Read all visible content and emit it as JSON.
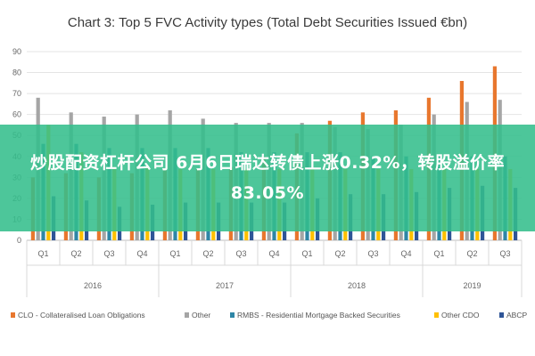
{
  "overlay": {
    "text": "炒股配资杠杆公司 6月6日瑞达转债上涨0.32%，转股溢价率83.05%"
  },
  "chart_data": {
    "type": "bar",
    "title": "Chart 3: Top 5 FVC Activity types (Total Debt Securities Issued €bn)",
    "xlabel": "",
    "ylabel": "",
    "ylim": [
      0,
      90
    ],
    "yticks": [
      0,
      10,
      20,
      30,
      40,
      50,
      60,
      70,
      80,
      90
    ],
    "grid": true,
    "legend_position": "bottom",
    "categories": [
      "Q1",
      "Q2",
      "Q3",
      "Q4",
      "Q1",
      "Q2",
      "Q3",
      "Q4",
      "Q1",
      "Q2",
      "Q3",
      "Q4",
      "Q1",
      "Q2",
      "Q3"
    ],
    "years": [
      {
        "label": "2016",
        "quarters": 4
      },
      {
        "label": "2017",
        "quarters": 4
      },
      {
        "label": "2018",
        "quarters": 4
      },
      {
        "label": "2019",
        "quarters": 3
      }
    ],
    "series": [
      {
        "name": "CLO - Collateralised Loan Obligations",
        "color": "#e8772e",
        "values": [
          30,
          32,
          30,
          32,
          34,
          34,
          35,
          40,
          51,
          57,
          61,
          62,
          68,
          76,
          83
        ]
      },
      {
        "name": "Other",
        "color": "#a5a5a5",
        "values": [
          68,
          61,
          59,
          60,
          62,
          58,
          56,
          56,
          56,
          54,
          53,
          55,
          60,
          66,
          67
        ]
      },
      {
        "name": "RMBS - Residential Mortgage Backed Securities",
        "color": "#2e86a6",
        "values": [
          46,
          46,
          44,
          44,
          44,
          44,
          42,
          42,
          42,
          42,
          40,
          40,
          40,
          40,
          40
        ]
      },
      {
        "name": "Other CDO",
        "color": "#ffc000",
        "values": [
          55,
          42,
          35,
          35,
          34,
          34,
          34,
          34,
          34,
          34,
          34,
          34,
          34,
          34,
          34
        ]
      },
      {
        "name": "ABCP",
        "color": "#2f5597",
        "values": [
          21,
          19,
          16,
          17,
          18,
          18,
          18,
          18,
          20,
          22,
          22,
          23,
          25,
          26,
          25
        ]
      }
    ]
  }
}
